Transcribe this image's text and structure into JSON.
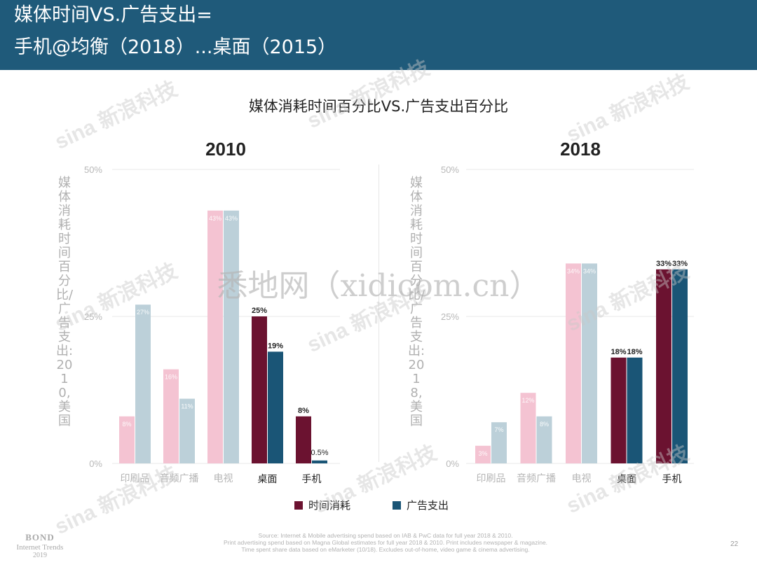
{
  "header": {
    "line1": "媒体时间VS.广告支出=",
    "line2": "手机@均衡（2018）...桌面（2015）"
  },
  "chart_title": "媒体消耗时间百分比VS.广告支出百分比",
  "y_axis": {
    "label_2010": "媒体消耗时间百分比/广告支出:2010,美国",
    "label_2018": "媒体消耗时间百分比/广告支出:2018,美国",
    "ticks": [
      "50%",
      "25%",
      "0%"
    ],
    "ylim": [
      0,
      50
    ]
  },
  "chart_data": [
    {
      "type": "bar",
      "title": "2010",
      "categories": [
        "印刷品",
        "音频广播",
        "电视",
        "桌面",
        "手机"
      ],
      "ylim": [
        0,
        50
      ],
      "series": [
        {
          "name": "时间消耗",
          "values": [
            8,
            16,
            43,
            25,
            8
          ],
          "labels": [
            "8%",
            "16%",
            "43%",
            "25%",
            "8%"
          ]
        },
        {
          "name": "广告支出",
          "values": [
            27,
            11,
            43,
            19,
            0.5
          ],
          "labels": [
            "27%",
            "11%",
            "43%",
            "19%",
            "0.5%"
          ]
        }
      ]
    },
    {
      "type": "bar",
      "title": "2018",
      "categories": [
        "印刷品",
        "音频广播",
        "电视",
        "桌面",
        "手机"
      ],
      "ylim": [
        0,
        50
      ],
      "series": [
        {
          "name": "时间消耗",
          "values": [
            3,
            12,
            34,
            18,
            33
          ],
          "labels": [
            "3%",
            "12%",
            "34%",
            "18%",
            "33%"
          ]
        },
        {
          "name": "广告支出",
          "values": [
            7,
            8,
            34,
            18,
            33
          ],
          "labels": [
            "7%",
            "8%",
            "34%",
            "18%",
            "33%"
          ]
        }
      ]
    }
  ],
  "colors": {
    "time_highlight": "#6b1230",
    "ad_highlight": "#1a5576",
    "time_faded": "#f4c3d2",
    "ad_faded": "#bcd0d9",
    "gridline": "#e8e8e8"
  },
  "legend": {
    "time": "时间消耗",
    "ad": "广告支出"
  },
  "source": {
    "line1": "Source: Internet & Mobile advertising spend based on IAB & PwC data for full year 2018 & 2010.",
    "line2": "Print advertising spend based on Magna Global estimates for full year 2018 & 2010. Print includes newspaper & magazine.",
    "line3": "Time spent share data based on eMarketer (10/18). Excludes out-of-home, video game & cinema advertising."
  },
  "page_number": "22",
  "branding": {
    "bond": "BOND",
    "subtitle": "Internet Trends",
    "year": "2019"
  },
  "watermark": {
    "site": "悉地网（xidicom.cn）",
    "sina": "sina 新浪科技"
  }
}
